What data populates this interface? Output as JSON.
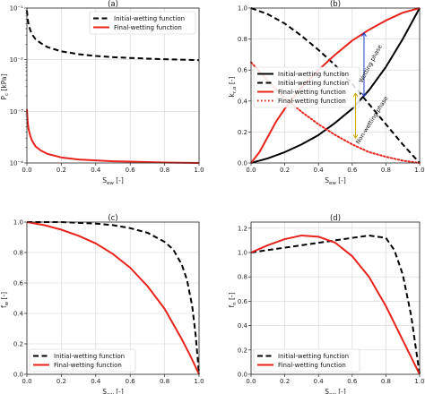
{
  "chart_data": [
    {
      "panel_label": "(a)",
      "type": "line",
      "y_scale": "log",
      "xlim": [
        0,
        1
      ],
      "ylim": [
        0.0001,
        0.1
      ],
      "xlabel": "S_ew [-]",
      "ylabel": "P_c [kPa]",
      "x_ticks": [
        "0.0",
        "0.2",
        "0.4",
        "0.6",
        "0.8",
        "1.0"
      ],
      "y_ticks": [
        "10⁻⁴",
        "10⁻³",
        "10⁻²",
        "10⁻¹"
      ],
      "legend": "top-right",
      "series": [
        {
          "name": "Initial-wetting function",
          "color": "#000000",
          "dash": "dashed",
          "x": [
            0.0,
            0.005,
            0.01,
            0.02,
            0.03,
            0.05,
            0.08,
            0.12,
            0.2,
            0.3,
            0.4,
            0.5,
            0.6,
            0.7,
            0.8,
            0.9,
            1.0
          ],
          "y": [
            0.09,
            0.06,
            0.048,
            0.037,
            0.031,
            0.025,
            0.021,
            0.0175,
            0.0145,
            0.0128,
            0.0118,
            0.0112,
            0.0108,
            0.0105,
            0.0102,
            0.01,
            0.0098
          ]
        },
        {
          "name": "Final-wetting function",
          "color": "#e8231c",
          "dash": "solid",
          "x": [
            0.0,
            0.005,
            0.01,
            0.02,
            0.03,
            0.05,
            0.08,
            0.12,
            0.2,
            0.3,
            0.4,
            0.5,
            0.6,
            0.7,
            0.8,
            0.9,
            1.0
          ],
          "y": [
            0.0011,
            0.0006,
            0.00045,
            0.00033,
            0.00027,
            0.00021,
            0.000175,
            0.00015,
            0.000128,
            0.000117,
            0.000112,
            0.000108,
            0.000106,
            0.000104,
            0.000102,
            0.000101,
            0.0001
          ]
        }
      ]
    },
    {
      "panel_label": "(b)",
      "type": "line",
      "xlim": [
        0,
        1
      ],
      "ylim": [
        0,
        1
      ],
      "xlabel": "S_ew [-]",
      "ylabel": "k_r,α [-]",
      "x_ticks": [
        "0.0",
        "0.2",
        "0.4",
        "0.6",
        "0.8",
        "1.0"
      ],
      "y_ticks": [
        "0.0",
        "0.2",
        "0.4",
        "0.6",
        "0.8",
        "1.0"
      ],
      "legend": "center-left",
      "annotations": [
        "Wetting phase",
        "Non-wetting phase"
      ],
      "series": [
        {
          "name": "Initial-wetting function",
          "color": "#000000",
          "dash": "solid",
          "x": [
            0,
            0.1,
            0.2,
            0.3,
            0.4,
            0.5,
            0.6,
            0.7,
            0.8,
            0.9,
            1.0
          ],
          "y": [
            0,
            0.03,
            0.07,
            0.12,
            0.18,
            0.26,
            0.35,
            0.47,
            0.62,
            0.8,
            1.0
          ]
        },
        {
          "name": "Initial-wetting function",
          "color": "#000000",
          "dash": "dashed",
          "x": [
            0,
            0.1,
            0.2,
            0.3,
            0.4,
            0.5,
            0.6,
            0.7,
            0.8,
            0.9,
            1.0
          ],
          "y": [
            1.0,
            0.96,
            0.9,
            0.82,
            0.73,
            0.63,
            0.51,
            0.38,
            0.25,
            0.12,
            0.0
          ]
        },
        {
          "name": "Final-wetting function",
          "color": "#e8231c",
          "dash": "solid",
          "x": [
            0,
            0.05,
            0.1,
            0.15,
            0.2,
            0.3,
            0.4,
            0.5,
            0.6,
            0.7,
            0.8,
            0.9,
            1.0
          ],
          "y": [
            0,
            0.07,
            0.17,
            0.27,
            0.35,
            0.49,
            0.6,
            0.7,
            0.79,
            0.86,
            0.92,
            0.97,
            1.0
          ]
        },
        {
          "name": "Final-wetting function",
          "color": "#e8231c",
          "dash": "dotted",
          "x": [
            0,
            0.1,
            0.2,
            0.3,
            0.4,
            0.5,
            0.6,
            0.7,
            0.8,
            0.9,
            1.0
          ],
          "y": [
            0.65,
            0.53,
            0.42,
            0.33,
            0.25,
            0.18,
            0.12,
            0.07,
            0.04,
            0.015,
            0.0
          ]
        }
      ]
    },
    {
      "panel_label": "(c)",
      "type": "line",
      "xlim": [
        0,
        1
      ],
      "ylim": [
        0,
        1
      ],
      "xlabel": "S_ew [-]",
      "ylabel": "f_w [-]",
      "x_ticks": [
        "0.0",
        "0.2",
        "0.4",
        "0.6",
        "0.8",
        "1.0"
      ],
      "y_ticks": [
        "0.0",
        "0.2",
        "0.4",
        "0.6",
        "0.8",
        "1.0"
      ],
      "legend": "bottom-left",
      "series": [
        {
          "name": "Initial-wetting function",
          "color": "#000000",
          "dash": "dashed",
          "x": [
            0,
            0.2,
            0.4,
            0.5,
            0.6,
            0.7,
            0.8,
            0.85,
            0.9,
            0.93,
            0.96,
            0.98,
            1.0
          ],
          "y": [
            1.0,
            1.0,
            0.99,
            0.98,
            0.96,
            0.93,
            0.87,
            0.82,
            0.72,
            0.62,
            0.45,
            0.26,
            0.0
          ]
        },
        {
          "name": "Final-wetting function",
          "color": "#e8231c",
          "dash": "solid",
          "x": [
            0,
            0.1,
            0.2,
            0.3,
            0.4,
            0.5,
            0.6,
            0.7,
            0.8,
            0.85,
            0.9,
            0.95,
            1.0
          ],
          "y": [
            1.0,
            0.98,
            0.95,
            0.91,
            0.86,
            0.79,
            0.7,
            0.58,
            0.43,
            0.33,
            0.23,
            0.12,
            0.0
          ]
        }
      ]
    },
    {
      "panel_label": "(d)",
      "type": "line",
      "xlim": [
        0,
        1
      ],
      "ylim": [
        0,
        1.25
      ],
      "xlabel": "S_ew [-]",
      "ylabel": "f_n [-]",
      "x_ticks": [
        "0.0",
        "0.2",
        "0.4",
        "0.6",
        "0.8",
        "1.0"
      ],
      "y_ticks": [
        "0.0",
        "0.2",
        "0.4",
        "0.6",
        "0.8",
        "1.0",
        "1.2"
      ],
      "legend": "bottom-left",
      "series": [
        {
          "name": "Initial-wetting function",
          "color": "#000000",
          "dash": "dashed",
          "x": [
            0,
            0.1,
            0.2,
            0.3,
            0.4,
            0.5,
            0.6,
            0.7,
            0.8,
            0.85,
            0.9,
            0.95,
            1.0
          ],
          "y": [
            1.0,
            1.02,
            1.04,
            1.06,
            1.08,
            1.1,
            1.12,
            1.14,
            1.12,
            1.02,
            0.82,
            0.48,
            0.0
          ]
        },
        {
          "name": "Final-wetting function",
          "color": "#e8231c",
          "dash": "solid",
          "x": [
            0,
            0.1,
            0.2,
            0.3,
            0.4,
            0.5,
            0.6,
            0.7,
            0.8,
            0.9,
            0.95,
            1.0
          ],
          "y": [
            1.0,
            1.06,
            1.11,
            1.14,
            1.13,
            1.08,
            0.97,
            0.8,
            0.56,
            0.28,
            0.14,
            0.0
          ]
        }
      ]
    }
  ]
}
